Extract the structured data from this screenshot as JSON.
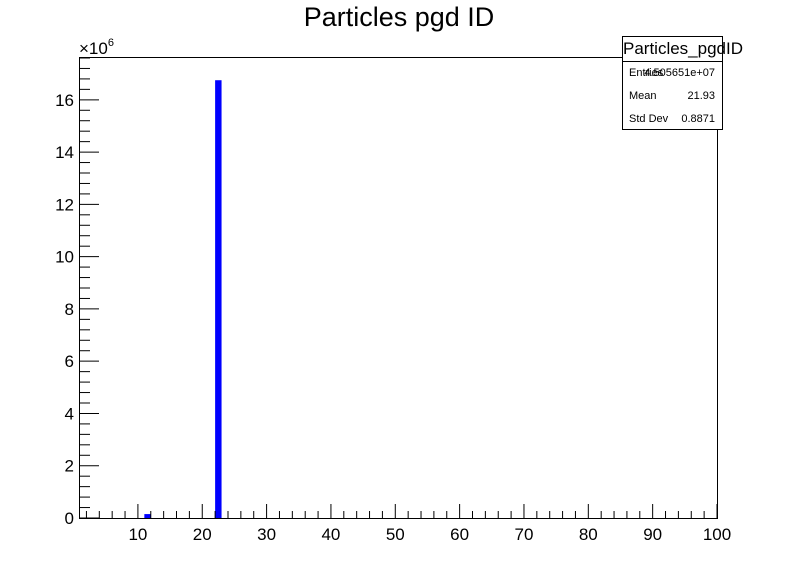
{
  "chart_data": {
    "type": "bar",
    "title": "Particles pgd ID",
    "xlabel": "",
    "ylabel": "",
    "y_multiplier": "×10",
    "y_multiplier_exp": "6",
    "xlim": [
      1,
      100
    ],
    "ylim": [
      0,
      17.6
    ],
    "x_ticks": [
      10,
      20,
      30,
      40,
      50,
      60,
      70,
      80,
      90,
      100
    ],
    "y_ticks": [
      0,
      2,
      4,
      6,
      8,
      10,
      12,
      14,
      16
    ],
    "bins": [
      {
        "x0": 11,
        "x1": 12,
        "value": 0.15
      },
      {
        "x0": 22,
        "x1": 23,
        "value": 16.75
      }
    ],
    "bar_color": "#0000ff",
    "stats_box": {
      "title": "Particles_pgdID",
      "rows": [
        {
          "label": "Entries",
          "value": "4.505651e+07"
        },
        {
          "label": "Mean",
          "value": "21.93"
        },
        {
          "label": "Std Dev",
          "value": "0.8871"
        }
      ]
    }
  }
}
